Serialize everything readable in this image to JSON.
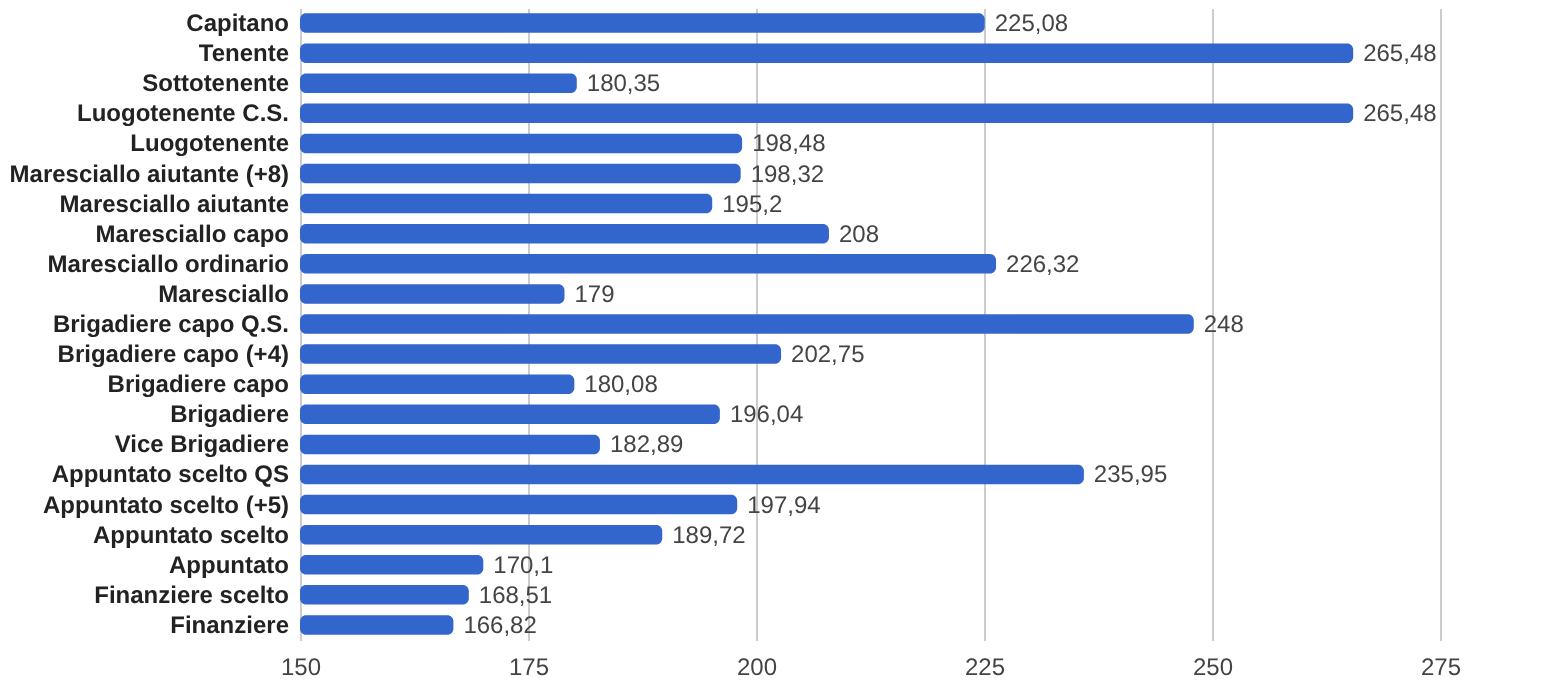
{
  "chart_data": {
    "type": "bar",
    "orientation": "horizontal",
    "categories": [
      "Capitano",
      "Tenente",
      "Sottotenente",
      "Luogotenente C.S.",
      "Luogotenente",
      "Maresciallo aiutante (+8)",
      "Maresciallo aiutante",
      "Maresciallo capo",
      "Maresciallo ordinario",
      "Maresciallo",
      "Brigadiere capo Q.S.",
      "Brigadiere capo (+4)",
      "Brigadiere capo",
      "Brigadiere",
      "Vice Brigadiere",
      "Appuntato scelto QS",
      "Appuntato scelto (+5)",
      "Appuntato scelto",
      "Appuntato",
      "Finanziere scelto",
      "Finanziere"
    ],
    "values": [
      225.08,
      265.48,
      180.35,
      265.48,
      198.48,
      198.32,
      195.2,
      208,
      226.32,
      179,
      248,
      202.75,
      180.08,
      196.04,
      182.89,
      235.95,
      197.94,
      189.72,
      170.1,
      168.51,
      166.82
    ],
    "value_labels": [
      "225,08",
      "265,48",
      "180,35",
      "265,48",
      "198,48",
      "198,32",
      "195,2",
      "208",
      "226,32",
      "179",
      "248",
      "202,75",
      "180,08",
      "196,04",
      "182,89",
      "235,95",
      "197,94",
      "189,72",
      "170,1",
      "168,51",
      "166,82"
    ],
    "color": "#3366cc",
    "xlim": [
      150,
      275
    ],
    "xticks": [
      150,
      175,
      200,
      225,
      250,
      275
    ],
    "grid": "x"
  }
}
